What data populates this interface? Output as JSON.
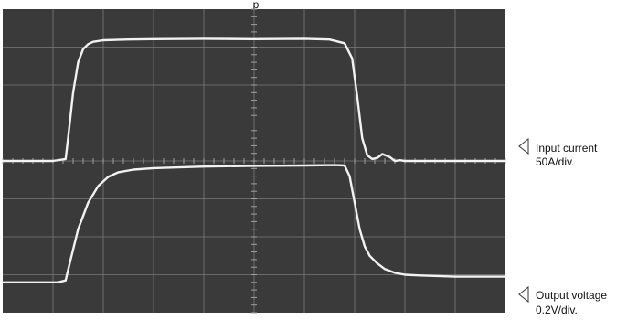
{
  "header": {
    "caption": "p"
  },
  "chart_data": {
    "type": "line",
    "title": "",
    "xlabel": "",
    "ylabel": "",
    "grid": true,
    "xlim": [
      0,
      10
    ],
    "ylim": [
      -4,
      4
    ],
    "grid_divisions": {
      "x": 10,
      "y": 8
    },
    "series": [
      {
        "name": "Input current",
        "scale_text": "50A/div.",
        "color": "#f2f2f2",
        "x": [
          0,
          1.0,
          1.25,
          1.3,
          1.4,
          1.5,
          1.6,
          1.7,
          1.8,
          2.0,
          2.5,
          3.0,
          4.0,
          5.0,
          6.0,
          6.5,
          6.8,
          6.95,
          7.05,
          7.15,
          7.25,
          7.35,
          7.45,
          7.55,
          7.7,
          7.8,
          7.9,
          8.0,
          8.2,
          9.0,
          10.0
        ],
        "y": [
          0.0,
          0.0,
          0.05,
          0.6,
          1.8,
          2.6,
          2.95,
          3.08,
          3.14,
          3.18,
          3.2,
          3.21,
          3.22,
          3.21,
          3.22,
          3.2,
          3.1,
          2.7,
          1.7,
          0.6,
          0.15,
          0.05,
          0.08,
          0.18,
          0.1,
          0.0,
          0.02,
          0.0,
          0.0,
          0.0,
          0.0
        ]
      },
      {
        "name": "Output voltage",
        "scale_text": "0.2V/div.",
        "color": "#f2f2f2",
        "x": [
          0,
          1.1,
          1.25,
          1.35,
          1.5,
          1.7,
          1.9,
          2.1,
          2.3,
          2.6,
          3.0,
          4.0,
          5.0,
          6.0,
          6.6,
          6.8,
          6.9,
          7.0,
          7.1,
          7.2,
          7.3,
          7.45,
          7.6,
          7.8,
          8.0,
          8.3,
          9.0,
          10.0
        ],
        "y": [
          -3.2,
          -3.2,
          -3.15,
          -2.6,
          -1.8,
          -1.1,
          -0.66,
          -0.42,
          -0.3,
          -0.23,
          -0.19,
          -0.15,
          -0.13,
          -0.12,
          -0.11,
          -0.12,
          -0.4,
          -1.1,
          -1.8,
          -2.25,
          -2.5,
          -2.7,
          -2.85,
          -2.95,
          -3.0,
          -3.02,
          -3.05,
          -3.05
        ]
      }
    ]
  }
}
